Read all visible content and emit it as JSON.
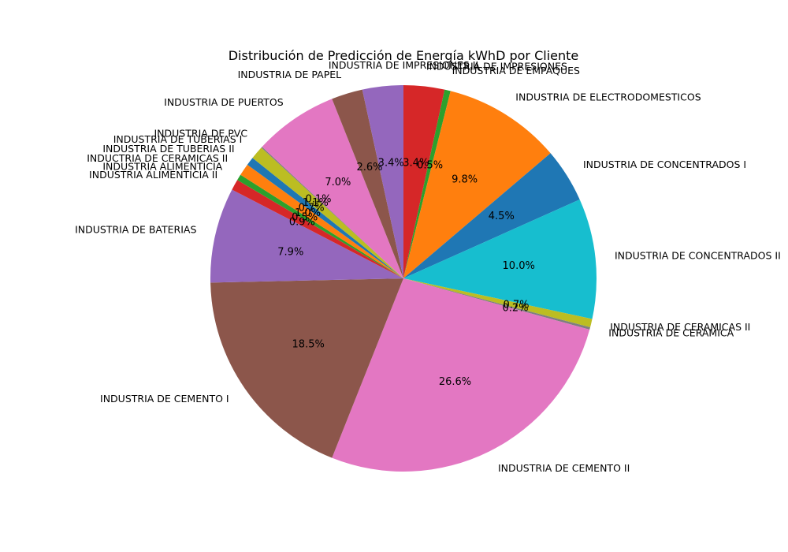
{
  "chart_data": {
    "type": "pie",
    "title": "Distribución de Predicción de Energía kWhD por Cliente",
    "start_angle_deg": 90,
    "direction": "clockwise",
    "slices": [
      {
        "label": "INDUSTRIA DE IMPRESIONES II",
        "value": 0.0,
        "pct_label": "",
        "color": "#8c564b"
      },
      {
        "label": "INDUSTRIA DE IMPRESIONES",
        "value": 3.4,
        "pct_label": "3.4%",
        "color": "#d62728"
      },
      {
        "label": "INDUSTRIA DE EMPAQUES",
        "value": 0.5,
        "pct_label": "0.5%",
        "color": "#2ca02c"
      },
      {
        "label": "INDUSTRIA DE ELECTRODOMESTICOS",
        "value": 9.8,
        "pct_label": "9.8%",
        "color": "#ff7f0e"
      },
      {
        "label": "INDUSTRIA DE CONCENTRADOS I",
        "value": 4.5,
        "pct_label": "4.5%",
        "color": "#1f77b4"
      },
      {
        "label": "INDUSTRIA DE CONCENTRADOS II",
        "value": 10.0,
        "pct_label": "10.0%",
        "color": "#17becf"
      },
      {
        "label": "INDUSTRIA DE CERAMICAS II",
        "value": 0.7,
        "pct_label": "0.7%",
        "color": "#bcbd22"
      },
      {
        "label": "INDUSTRIA DE CERAMICA",
        "value": 0.2,
        "pct_label": "0.2%",
        "color": "#7f7f7f"
      },
      {
        "label": "INDUSTRIA DE CEMENTO II",
        "value": 26.6,
        "pct_label": "26.6%",
        "color": "#e377c2"
      },
      {
        "label": "INDUSTRIA DE CEMENTO I",
        "value": 18.5,
        "pct_label": "18.5%",
        "color": "#8c564b"
      },
      {
        "label": "INDUSTRIA DE BATERIAS",
        "value": 7.9,
        "pct_label": "7.9%",
        "color": "#9467bd"
      },
      {
        "label": "INDUSTRIA ALIMENTICIA II",
        "value": 0.9,
        "pct_label": "0.9%",
        "color": "#d62728"
      },
      {
        "label": "INDUSTRIA ALIMENTICIA",
        "value": 0.5,
        "pct_label": "0.5%",
        "color": "#2ca02c"
      },
      {
        "label": "INDUCTRIA DE CERAMICAS II",
        "value": 1.0,
        "pct_label": "1.0%",
        "color": "#ff7f0e"
      },
      {
        "label": "INDUSTRIA DE TUBERIAS II",
        "value": 0.7,
        "pct_label": "0.7%",
        "color": "#1f77b4"
      },
      {
        "label": "INDUSTRIA DE TUBERIAS I",
        "value": 1.1,
        "pct_label": "1.1%",
        "color": "#bcbd22"
      },
      {
        "label": "INDUSTRIA DE PVC",
        "value": 0.1,
        "pct_label": "0.1%",
        "color": "#7f7f7f"
      },
      {
        "label": "INDUSTRIA DE PUERTOS",
        "value": 7.0,
        "pct_label": "7.0%",
        "color": "#e377c2"
      },
      {
        "label": "INDUSTRIA DE PAPEL",
        "value": 2.6,
        "pct_label": "2.6%",
        "color": "#8c564b"
      },
      {
        "label": "",
        "value": 3.4,
        "pct_label": "3.4%",
        "color": "#9467bd"
      }
    ]
  }
}
